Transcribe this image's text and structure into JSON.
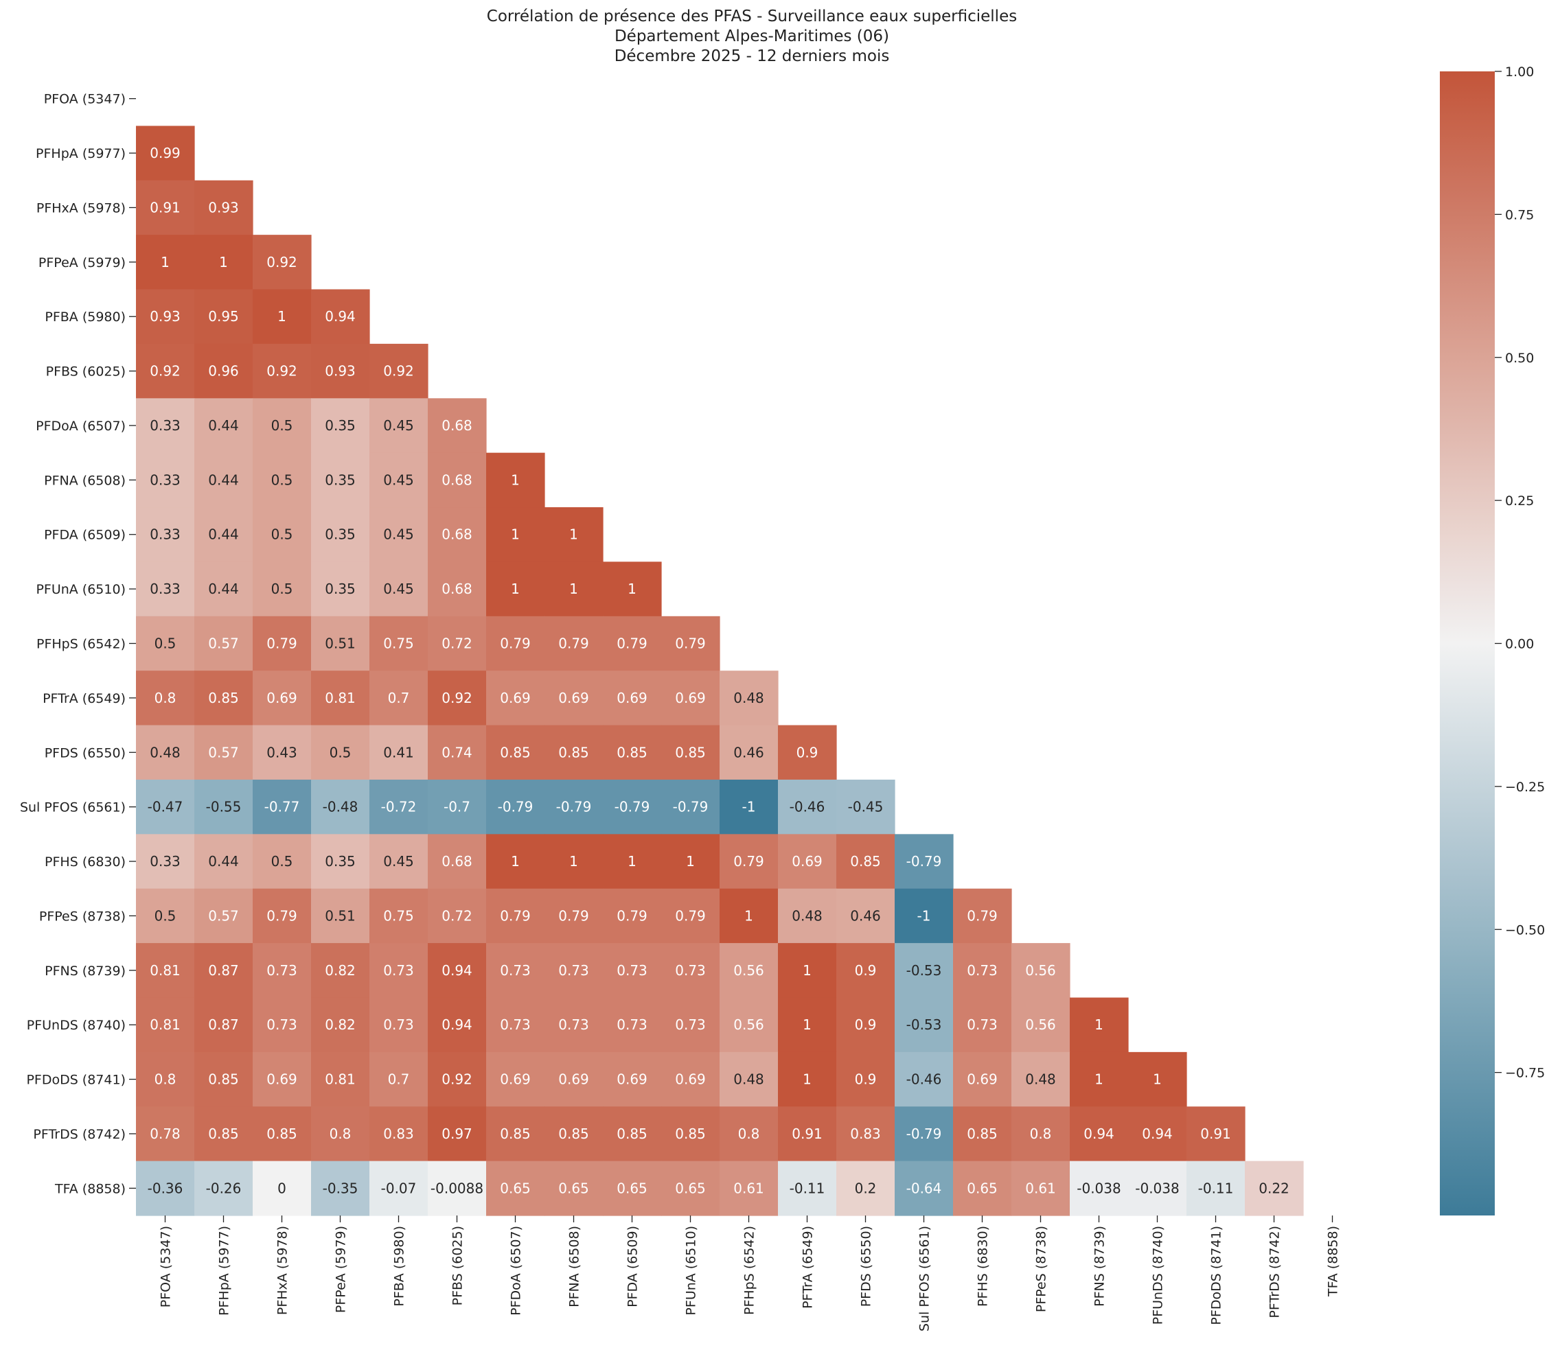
{
  "chart_data": {
    "type": "heatmap",
    "title_lines": [
      "Corrélation de présence des PFAS - Surveillance eaux superficielles",
      "Département Alpes-Maritimes (06)",
      "Décembre 2025 - 12 derniers mois"
    ],
    "labels": [
      "PFOA (5347)",
      "PFHpA (5977)",
      "PFHxA (5978)",
      "PFPeA (5979)",
      "PFBA (5980)",
      "PFBS (6025)",
      "PFDoA (6507)",
      "PFNA (6508)",
      "PFDA (6509)",
      "PFUnA (6510)",
      "PFHpS (6542)",
      "PFTrA (6549)",
      "PFDS (6550)",
      "Sul PFOS (6561)",
      "PFHS (6830)",
      "PFPeS (8738)",
      "PFNS (8739)",
      "PFUnDS (8740)",
      "PFDoDS (8741)",
      "PFTrDS (8742)",
      "TFA (8858)"
    ],
    "lower_triangle": [
      [],
      [
        0.99
      ],
      [
        0.91,
        0.93
      ],
      [
        1,
        1,
        0.92
      ],
      [
        0.93,
        0.95,
        1,
        0.94
      ],
      [
        0.92,
        0.96,
        0.92,
        0.93,
        0.92
      ],
      [
        0.33,
        0.44,
        0.5,
        0.35,
        0.45,
        0.68
      ],
      [
        0.33,
        0.44,
        0.5,
        0.35,
        0.45,
        0.68,
        1
      ],
      [
        0.33,
        0.44,
        0.5,
        0.35,
        0.45,
        0.68,
        1,
        1
      ],
      [
        0.33,
        0.44,
        0.5,
        0.35,
        0.45,
        0.68,
        1,
        1,
        1
      ],
      [
        0.5,
        0.57,
        0.79,
        0.51,
        0.75,
        0.72,
        0.79,
        0.79,
        0.79,
        0.79
      ],
      [
        0.8,
        0.85,
        0.69,
        0.81,
        0.7,
        0.92,
        0.69,
        0.69,
        0.69,
        0.69,
        0.48
      ],
      [
        0.48,
        0.57,
        0.43,
        0.5,
        0.41,
        0.74,
        0.85,
        0.85,
        0.85,
        0.85,
        0.46,
        0.9
      ],
      [
        -0.47,
        -0.55,
        -0.77,
        -0.48,
        -0.72,
        -0.7,
        -0.79,
        -0.79,
        -0.79,
        -0.79,
        -1,
        -0.46,
        -0.45
      ],
      [
        0.33,
        0.44,
        0.5,
        0.35,
        0.45,
        0.68,
        1,
        1,
        1,
        1,
        0.79,
        0.69,
        0.85,
        -0.79
      ],
      [
        0.5,
        0.57,
        0.79,
        0.51,
        0.75,
        0.72,
        0.79,
        0.79,
        0.79,
        0.79,
        1,
        0.48,
        0.46,
        -1,
        0.79
      ],
      [
        0.81,
        0.87,
        0.73,
        0.82,
        0.73,
        0.94,
        0.73,
        0.73,
        0.73,
        0.73,
        0.56,
        1,
        0.9,
        -0.53,
        0.73,
        0.56
      ],
      [
        0.81,
        0.87,
        0.73,
        0.82,
        0.73,
        0.94,
        0.73,
        0.73,
        0.73,
        0.73,
        0.56,
        1,
        0.9,
        -0.53,
        0.73,
        0.56,
        1
      ],
      [
        0.8,
        0.85,
        0.69,
        0.81,
        0.7,
        0.92,
        0.69,
        0.69,
        0.69,
        0.69,
        0.48,
        1,
        0.9,
        -0.46,
        0.69,
        0.48,
        1,
        1
      ],
      [
        0.78,
        0.85,
        0.85,
        0.8,
        0.83,
        0.97,
        0.85,
        0.85,
        0.85,
        0.85,
        0.8,
        0.91,
        0.83,
        -0.79,
        0.85,
        0.8,
        0.94,
        0.94,
        0.91
      ],
      [
        -0.36,
        -0.26,
        0,
        -0.35,
        -0.07,
        -0.0088,
        0.65,
        0.65,
        0.65,
        0.65,
        0.61,
        -0.11,
        0.2,
        -0.64,
        0.65,
        0.61,
        -0.038,
        -0.038,
        -0.11,
        0.22
      ]
    ],
    "colorbar": {
      "vmin": -1,
      "vmax": 1,
      "ticks": [
        1.0,
        0.75,
        0.5,
        0.25,
        0.0,
        -0.25,
        -0.5,
        -0.75
      ],
      "tick_labels": [
        "1.00",
        "0.75",
        "0.50",
        "0.25",
        "0.00",
        "−0.25",
        "−0.50",
        "−0.75"
      ]
    },
    "colors": {
      "negative": "#3d7b98",
      "neutral": "#f2f2f2",
      "positive": "#c3553a"
    },
    "xlabel": "",
    "ylabel": ""
  }
}
